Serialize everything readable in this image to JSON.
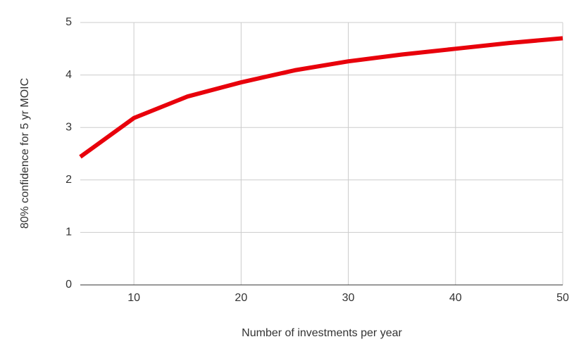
{
  "chart_data": {
    "type": "line",
    "x_label": "Number of investments per year",
    "y_label": "80% confidence for 5 yr MOIC",
    "x": [
      5,
      10,
      15,
      20,
      25,
      30,
      35,
      40,
      45,
      50
    ],
    "series": [
      {
        "name": "80% confidence for 5 yr MOIC",
        "color": "#e8000b",
        "values": [
          2.44,
          3.18,
          3.59,
          3.86,
          4.09,
          4.26,
          4.39,
          4.5,
          4.61,
          4.7
        ]
      }
    ],
    "xlim": [
      5,
      50
    ],
    "xticks": [
      10,
      20,
      30,
      40,
      50
    ],
    "ylim": [
      0,
      5
    ],
    "yticks": [
      0,
      1,
      2,
      3,
      4,
      5
    ],
    "grid": true
  }
}
